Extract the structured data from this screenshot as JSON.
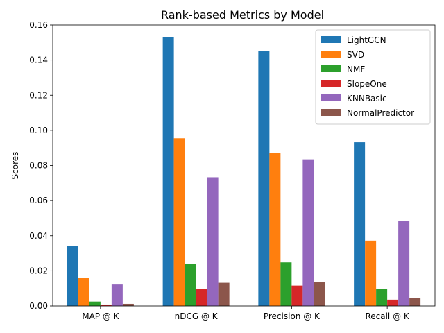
{
  "chart_data": {
    "type": "bar",
    "title": "Rank-based Metrics by Model",
    "xlabel": "",
    "ylabel": "Scores",
    "categories": [
      "MAP @ K",
      "nDCG @ K",
      "Precision @ K",
      "Recall @ K"
    ],
    "ylim": [
      0,
      0.16
    ],
    "yticks": [
      "0.00",
      "0.02",
      "0.04",
      "0.06",
      "0.08",
      "0.10",
      "0.12",
      "0.14",
      "0.16"
    ],
    "grid": false,
    "legend_position": "top-right",
    "series": [
      {
        "name": "LightGCN",
        "color": "#1f77b4",
        "values": [
          0.0342,
          0.1532,
          0.1453,
          0.0932
        ]
      },
      {
        "name": "SVD",
        "color": "#ff7f0e",
        "values": [
          0.0158,
          0.0955,
          0.0872,
          0.0372
        ]
      },
      {
        "name": "NMF",
        "color": "#2ca02c",
        "values": [
          0.0025,
          0.024,
          0.0248,
          0.0098
        ]
      },
      {
        "name": "SlopeOne",
        "color": "#d62728",
        "values": [
          0.0008,
          0.0098,
          0.0116,
          0.0036
        ]
      },
      {
        "name": "KNNBasic",
        "color": "#9467bd",
        "values": [
          0.0122,
          0.0733,
          0.0835,
          0.0485
        ]
      },
      {
        "name": "NormalPredictor",
        "color": "#8c564b",
        "values": [
          0.0012,
          0.0132,
          0.0135,
          0.0045
        ]
      }
    ]
  }
}
